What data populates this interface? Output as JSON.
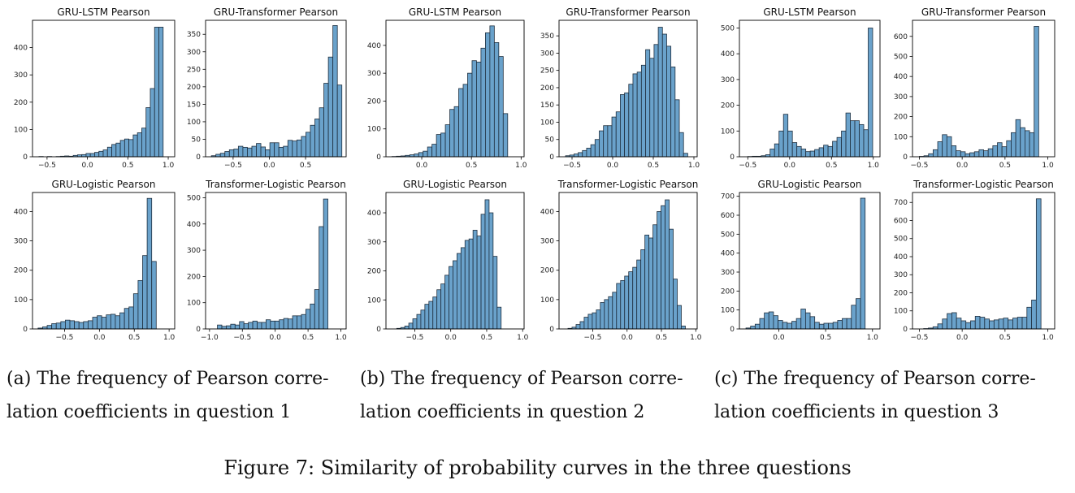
{
  "colors": {
    "bar_fill": "#6aa2cb",
    "bar_edge": "#1f2f3f",
    "axis": "#000000"
  },
  "subcaptions": [
    {
      "line1": "(a) The frequency of Pearson corre-",
      "line2": "lation coefficients in question 1"
    },
    {
      "line1": "(b) The frequency of Pearson corre-",
      "line2": "lation coefficients in question 2"
    },
    {
      "line1": "(c) The frequency of Pearson corre-",
      "line2": "lation coefficients in question 3"
    }
  ],
  "figure_caption": "Figure 7: Similarity of probability curves in the three questions",
  "chart_data": [
    {
      "type": "bar",
      "title": "GRU-LSTM Pearson",
      "group": "a",
      "xlim": [
        -0.68,
        1.08
      ],
      "ylim": [
        0,
        500
      ],
      "xticks": [
        -0.5,
        0.0,
        0.5,
        1.0
      ],
      "xtick_labels": [
        "−0.5",
        "0.0",
        "0.5",
        "1.0"
      ],
      "yticks": [
        0,
        100,
        200,
        300,
        400
      ],
      "ytick_labels": [
        "0",
        "100",
        "200",
        "300",
        "400"
      ],
      "bin_start": -0.6,
      "bin_width": 0.053,
      "values": [
        1,
        0,
        1,
        0,
        1,
        2,
        3,
        2,
        5,
        7,
        8,
        12,
        12,
        16,
        20,
        25,
        35,
        45,
        50,
        60,
        65,
        63,
        80,
        88,
        105,
        180,
        250,
        475,
        475
      ]
    },
    {
      "type": "bar",
      "title": "GRU-Transformer Pearson",
      "group": "a",
      "xlim": [
        -0.88,
        1.06
      ],
      "ylim": [
        0,
        390
      ],
      "xticks": [
        -0.5,
        0.0,
        0.5
      ],
      "xtick_labels": [
        "−0.5",
        "0.0",
        "0.5"
      ],
      "yticks": [
        0,
        50,
        100,
        150,
        200,
        250,
        300,
        350
      ],
      "ytick_labels": [
        "0",
        "50",
        "100",
        "150",
        "200",
        "250",
        "300",
        "350"
      ],
      "bin_start": -0.8,
      "bin_width": 0.0621,
      "values": [
        3,
        7,
        10,
        15,
        20,
        22,
        30,
        27,
        25,
        30,
        38,
        28,
        20,
        40,
        40,
        27,
        30,
        47,
        45,
        48,
        58,
        70,
        90,
        108,
        140,
        210,
        285,
        375,
        205
      ]
    },
    {
      "type": "bar",
      "title": "GRU-LSTM Pearson",
      "group": "b",
      "xlim": [
        -0.36,
        1.03
      ],
      "ylim": [
        0,
        490
      ],
      "xticks": [
        0.0,
        0.5,
        1.0
      ],
      "xtick_labels": [
        "0.0",
        "0.5",
        "1.0"
      ],
      "yticks": [
        0,
        100,
        200,
        300,
        400
      ],
      "ytick_labels": [
        "0",
        "100",
        "200",
        "300",
        "400"
      ],
      "bin_start": -0.3,
      "bin_width": 0.0448,
      "values": [
        1,
        2,
        3,
        5,
        7,
        10,
        15,
        20,
        35,
        45,
        80,
        85,
        115,
        170,
        180,
        245,
        260,
        300,
        345,
        340,
        390,
        445,
        470,
        410,
        360,
        155
      ]
    },
    {
      "type": "bar",
      "title": "GRU-Transformer Pearson",
      "group": "b",
      "xlim": [
        -0.66,
        1.04
      ],
      "ylim": [
        0,
        395
      ],
      "xticks": [
        -0.5,
        0.0,
        0.5,
        1.0
      ],
      "xtick_labels": [
        "−0.5",
        "0.0",
        "0.5",
        "1.0"
      ],
      "yticks": [
        0,
        50,
        100,
        150,
        200,
        250,
        300,
        350
      ],
      "ytick_labels": [
        "0",
        "50",
        "100",
        "150",
        "200",
        "250",
        "300",
        "350"
      ],
      "bin_start": -0.58,
      "bin_width": 0.05186,
      "values": [
        3,
        5,
        8,
        12,
        18,
        25,
        35,
        50,
        75,
        90,
        90,
        115,
        130,
        180,
        185,
        210,
        240,
        245,
        265,
        310,
        285,
        325,
        375,
        355,
        320,
        260,
        165,
        70,
        10
      ]
    },
    {
      "type": "bar",
      "title": "GRU-LSTM Pearson",
      "group": "c",
      "xlim": [
        -0.6,
        1.08
      ],
      "ylim": [
        0,
        530
      ],
      "xticks": [
        -0.5,
        0.0,
        0.5,
        1.0
      ],
      "xtick_labels": [
        "−0.5",
        "0.0",
        "0.5",
        "1.0"
      ],
      "yticks": [
        0,
        100,
        200,
        300,
        400,
        500
      ],
      "ytick_labels": [
        "0",
        "100",
        "200",
        "300",
        "400",
        "500"
      ],
      "bin_start": -0.5,
      "bin_width": 0.0533,
      "values": [
        1,
        2,
        2,
        4,
        8,
        30,
        50,
        100,
        165,
        100,
        55,
        40,
        30,
        20,
        22,
        28,
        35,
        45,
        40,
        60,
        75,
        100,
        170,
        140,
        140,
        125,
        105,
        500
      ]
    },
    {
      "type": "bar",
      "title": "GRU-Transformer Pearson",
      "group": "c",
      "xlim": [
        -0.58,
        1.08
      ],
      "ylim": [
        0,
        680
      ],
      "xticks": [
        -0.5,
        0.0,
        0.5,
        1.0
      ],
      "xtick_labels": [
        "−0.5",
        "0.0",
        "0.5",
        "1.0"
      ],
      "yticks": [
        0,
        100,
        200,
        300,
        400,
        500,
        600
      ],
      "ytick_labels": [
        "0",
        "100",
        "200",
        "300",
        "400",
        "500",
        "600"
      ],
      "bin_start": -0.5,
      "bin_width": 0.0536,
      "values": [
        2,
        5,
        15,
        35,
        75,
        110,
        100,
        55,
        30,
        25,
        15,
        20,
        25,
        35,
        30,
        40,
        55,
        70,
        50,
        80,
        120,
        185,
        145,
        130,
        120,
        650
      ]
    },
    {
      "type": "bar",
      "title": "GRU-Logistic Pearson",
      "group": "a",
      "xlim": [
        -0.96,
        1.08
      ],
      "ylim": [
        0,
        465
      ],
      "xticks": [
        -0.5,
        0.0,
        0.5,
        1.0
      ],
      "xtick_labels": [
        "−0.5",
        "0.0",
        "0.5",
        "1.0"
      ],
      "yticks": [
        0,
        100,
        200,
        300,
        400
      ],
      "ytick_labels": [
        "0",
        "100",
        "200",
        "300",
        "400"
      ],
      "bin_start": -0.88,
      "bin_width": 0.0652,
      "values": [
        3,
        7,
        12,
        18,
        20,
        25,
        30,
        28,
        25,
        22,
        25,
        28,
        40,
        45,
        40,
        48,
        50,
        45,
        55,
        70,
        75,
        120,
        165,
        250,
        445,
        230
      ]
    },
    {
      "type": "bar",
      "title": "Transformer-Logistic Pearson",
      "group": "a",
      "xlim": [
        -1.06,
        1.08
      ],
      "ylim": [
        0,
        520
      ],
      "xticks": [
        -1.0,
        -0.5,
        0.0,
        0.5,
        1.0
      ],
      "xtick_labels": [
        "−1.0",
        "−0.5",
        "0.0",
        "0.5",
        "1.0"
      ],
      "yticks": [
        0,
        100,
        200,
        300,
        400,
        500
      ],
      "ytick_labels": [
        "0",
        "100",
        "200",
        "300",
        "400",
        "500"
      ],
      "bin_start": -0.88,
      "bin_width": 0.0673,
      "values": [
        15,
        10,
        12,
        18,
        15,
        28,
        20,
        25,
        30,
        25,
        25,
        35,
        30,
        30,
        35,
        40,
        38,
        50,
        50,
        55,
        75,
        95,
        150,
        390,
        495
      ]
    },
    {
      "type": "bar",
      "title": "GRU-Logistic Pearson",
      "group": "b",
      "xlim": [
        -0.9,
        1.02
      ],
      "ylim": [
        0,
        470
      ],
      "xticks": [
        -0.5,
        0.0,
        0.5,
        1.0
      ],
      "xtick_labels": [
        "−0.5",
        "0.0",
        "0.5",
        "1.0"
      ],
      "yticks": [
        0,
        100,
        200,
        300,
        400
      ],
      "ytick_labels": [
        "0",
        "100",
        "200",
        "300",
        "400"
      ],
      "bin_start": -0.75,
      "bin_width": 0.0558,
      "values": [
        2,
        5,
        10,
        20,
        35,
        50,
        65,
        85,
        95,
        110,
        135,
        155,
        185,
        215,
        235,
        260,
        280,
        305,
        310,
        340,
        320,
        395,
        445,
        400,
        250,
        75
      ]
    },
    {
      "type": "bar",
      "title": "Transformer-Logistic Pearson",
      "group": "b",
      "xlim": [
        -0.99,
        1.02
      ],
      "ylim": [
        0,
        465
      ],
      "xticks": [
        -0.5,
        0.0,
        0.5,
        1.0
      ],
      "xtick_labels": [
        "−0.5",
        "0.0",
        "0.5",
        "1.0"
      ],
      "yticks": [
        0,
        100,
        200,
        300,
        400
      ],
      "ytick_labels": [
        "0",
        "100",
        "200",
        "300",
        "400"
      ],
      "bin_start": -0.86,
      "bin_width": 0.0589,
      "values": [
        2,
        6,
        15,
        25,
        40,
        50,
        55,
        65,
        90,
        100,
        110,
        125,
        155,
        165,
        180,
        195,
        210,
        235,
        270,
        320,
        310,
        355,
        400,
        420,
        440,
        340,
        170,
        80,
        10
      ]
    },
    {
      "type": "bar",
      "title": "GRU-Logistic Pearson",
      "group": "c",
      "xlim": [
        -0.42,
        1.08
      ],
      "ylim": [
        0,
        720
      ],
      "xticks": [
        0.0,
        0.5,
        1.0
      ],
      "xtick_labels": [
        "0.0",
        "0.5",
        "1.0"
      ],
      "yticks": [
        0,
        100,
        200,
        300,
        400,
        500,
        600,
        700
      ],
      "ytick_labels": [
        "0",
        "100",
        "200",
        "300",
        "400",
        "500",
        "600",
        "700"
      ],
      "bin_start": -0.35,
      "bin_width": 0.0489,
      "values": [
        5,
        15,
        25,
        55,
        85,
        90,
        70,
        45,
        35,
        30,
        40,
        55,
        105,
        85,
        65,
        35,
        25,
        30,
        30,
        35,
        45,
        55,
        55,
        125,
        160,
        690
      ]
    },
    {
      "type": "bar",
      "title": "Transformer-Logistic Pearson",
      "group": "c",
      "xlim": [
        -0.58,
        1.08
      ],
      "ylim": [
        0,
        755
      ],
      "xticks": [
        -0.5,
        0.0,
        0.5,
        1.0
      ],
      "xtick_labels": [
        "−0.5",
        "0.0",
        "0.5",
        "1.0"
      ],
      "yticks": [
        0,
        100,
        200,
        300,
        400,
        500,
        600,
        700
      ],
      "ytick_labels": [
        "0",
        "100",
        "200",
        "300",
        "400",
        "500",
        "600",
        "700"
      ],
      "bin_start": -0.45,
      "bin_width": 0.0548,
      "values": [
        2,
        5,
        12,
        28,
        55,
        85,
        90,
        60,
        45,
        35,
        45,
        70,
        65,
        55,
        45,
        50,
        55,
        60,
        50,
        60,
        65,
        65,
        120,
        160,
        720
      ]
    }
  ]
}
